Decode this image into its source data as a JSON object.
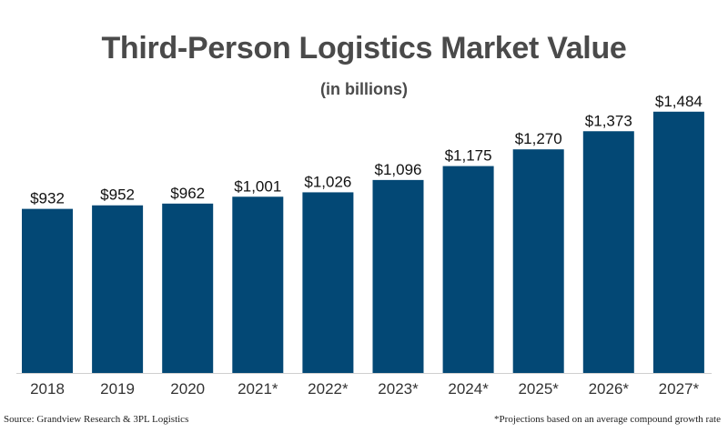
{
  "chart_data": {
    "type": "bar",
    "title": "Third-Person Logistics Market Value",
    "subtitle": "(in billions)",
    "categories": [
      "2018",
      "2019",
      "2020",
      "2021*",
      "2022*",
      "2023*",
      "2024*",
      "2025*",
      "2026*",
      "2027*"
    ],
    "values": [
      932,
      952,
      962,
      1001,
      1026,
      1096,
      1175,
      1270,
      1373,
      1484
    ],
    "value_labels": [
      "$932",
      "$952",
      "$962",
      "$1,001",
      "$1,026",
      "$1,096",
      "$1,175",
      "$1,270",
      "$1,373",
      "$1,484"
    ],
    "ylim": [
      0,
      1550
    ],
    "grid": false,
    "bar_color": "#034875"
  },
  "footer": {
    "source": "Source: Grandview Research & 3PL Logistics",
    "note": "*Projections based on an average compound growth rate"
  }
}
